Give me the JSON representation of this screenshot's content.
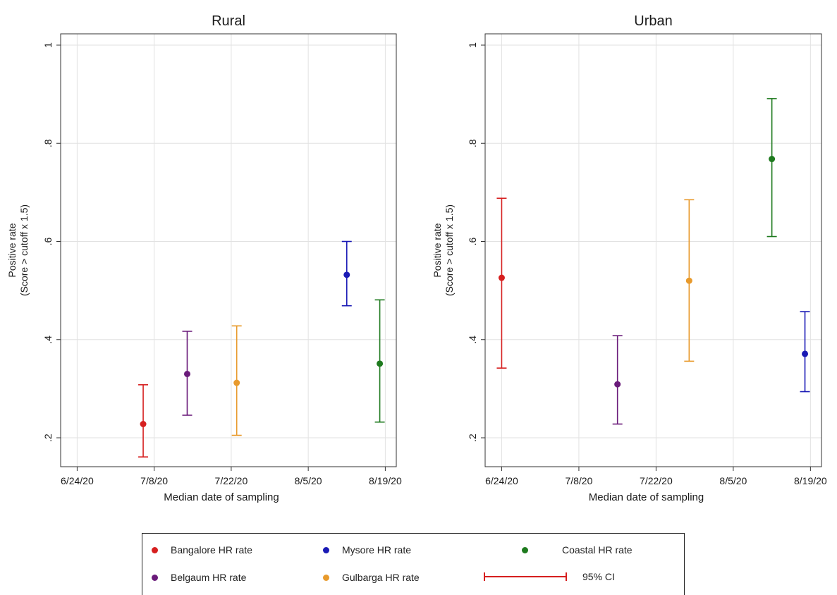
{
  "chart_data": [
    {
      "type": "scatter",
      "title": "Rural",
      "xlabel": "Median date of sampling",
      "ylabel": "Positive rate\n(Score > cutoff x 1.5)",
      "xticks": [
        "6/24/20",
        "7/8/20",
        "7/22/20",
        "8/5/20",
        "8/19/20"
      ],
      "yticks": [
        "1",
        ".8",
        ".6",
        ".4",
        ".2"
      ],
      "ylim": [
        0.15,
        1.0
      ],
      "xlim": [
        "6/21/20",
        "8/21/20"
      ],
      "grid": true,
      "series": [
        {
          "name": "Bangalore HR rate",
          "color": "#d61f1f",
          "x": "7/6/20",
          "y": 0.228,
          "ci": [
            0.161,
            0.308
          ]
        },
        {
          "name": "Belgaum HR rate",
          "color": "#6a1b7a",
          "x": "7/14/20",
          "y": 0.33,
          "ci": [
            0.246,
            0.417
          ]
        },
        {
          "name": "Gulbarga HR rate",
          "color": "#e89a2c",
          "x": "7/23/20",
          "y": 0.312,
          "ci": [
            0.205,
            0.428
          ]
        },
        {
          "name": "Mysore HR rate",
          "color": "#1a1ab5",
          "x": "8/12/20",
          "y": 0.532,
          "ci": [
            0.469,
            0.6
          ]
        },
        {
          "name": "Coastal HR rate",
          "color": "#1e7a1e",
          "x": "8/18/20",
          "y": 0.351,
          "ci": [
            0.232,
            0.481
          ]
        }
      ]
    },
    {
      "type": "scatter",
      "title": "Urban",
      "xlabel": "Median date of sampling",
      "ylabel": "Positive rate\n(Score > cutoff x 1.5)",
      "xticks": [
        "6/24/20",
        "7/8/20",
        "7/22/20",
        "8/5/20",
        "8/19/20"
      ],
      "yticks": [
        "1",
        ".8",
        ".6",
        ".4",
        ".2"
      ],
      "ylim": [
        0.15,
        1.0
      ],
      "xlim": [
        "6/21/20",
        "8/21/20"
      ],
      "grid": true,
      "series": [
        {
          "name": "Bangalore HR rate",
          "color": "#d61f1f",
          "x": "6/24/20",
          "y": 0.526,
          "ci": [
            0.342,
            0.688
          ]
        },
        {
          "name": "Belgaum HR rate",
          "color": "#6a1b7a",
          "x": "7/15/20",
          "y": 0.309,
          "ci": [
            0.228,
            0.408
          ]
        },
        {
          "name": "Gulbarga HR rate",
          "color": "#e89a2c",
          "x": "7/28/20",
          "y": 0.52,
          "ci": [
            0.356,
            0.685
          ]
        },
        {
          "name": "Coastal HR rate",
          "color": "#1e7a1e",
          "x": "8/12/20",
          "y": 0.768,
          "ci": [
            0.61,
            0.891
          ]
        },
        {
          "name": "Mysore HR rate",
          "color": "#1a1ab5",
          "x": "8/18/20",
          "y": 0.371,
          "ci": [
            0.294,
            0.457
          ]
        }
      ]
    }
  ],
  "legend": {
    "placement": "bottom",
    "items": [
      {
        "label": "Bangalore HR rate",
        "color": "#d61f1f"
      },
      {
        "label": "Mysore HR rate",
        "color": "#1a1ab5"
      },
      {
        "label": "Coastal HR rate",
        "color": "#1e7a1e"
      },
      {
        "label": "Belgaum HR rate",
        "color": "#6a1b7a"
      },
      {
        "label": "Gulbarga HR rate",
        "color": "#e89a2c"
      },
      {
        "label": "95% CI",
        "color": "#d61f1f"
      }
    ]
  }
}
